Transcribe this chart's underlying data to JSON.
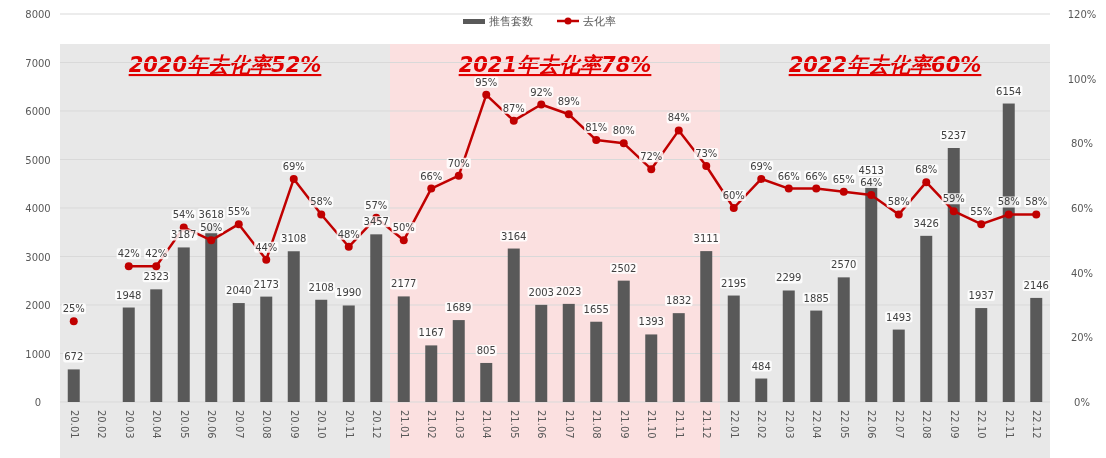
{
  "chart_data": {
    "type": "bar",
    "categories": [
      "20.01",
      "20.02",
      "20.03",
      "20.04",
      "20.05",
      "20.06",
      "20.07",
      "20.08",
      "20.09",
      "20.10",
      "20.11",
      "20.12",
      "21.01",
      "21.02",
      "21.03",
      "21.04",
      "21.05",
      "21.06",
      "21.07",
      "21.08",
      "21.09",
      "21.10",
      "21.11",
      "21.12",
      "22.01",
      "22.02",
      "22.03",
      "22.04",
      "22.05",
      "22.06",
      "22.07",
      "22.08",
      "22.09",
      "22.10",
      "22.11",
      "22.12"
    ],
    "series": [
      {
        "name": "推售套数",
        "color": "#595959",
        "values": [
          672,
          null,
          1948,
          2323,
          3187,
          3618,
          2040,
          2173,
          3108,
          2108,
          1990,
          3457,
          2177,
          1167,
          1689,
          805,
          3164,
          2003,
          2023,
          1655,
          2502,
          1393,
          1832,
          3111,
          2195,
          484,
          2299,
          1885,
          2570,
          4513,
          1493,
          3426,
          5237,
          1937,
          6154,
          2146
        ],
        "value_labels": [
          "672",
          null,
          "1948",
          "2323",
          "3187",
          "3618",
          "2040",
          "2173",
          "3108",
          "2108",
          "1990",
          "3457",
          "2177",
          "1167",
          "1689",
          "805",
          "3164",
          "2003",
          "2023",
          "1655",
          "2502",
          "1393",
          "1832",
          "3111",
          "2195",
          "484",
          "2299",
          "1885",
          "2570",
          "4513",
          "1493",
          "3426",
          "5237",
          "1937",
          "6154",
          "2146"
        ]
      },
      {
        "name": "去化率",
        "type": "line",
        "axis": "y2",
        "color": "#c00000",
        "marker": "circle",
        "values": [
          25,
          null,
          42,
          42,
          54,
          50,
          55,
          44,
          69,
          58,
          48,
          57,
          50,
          66,
          70,
          95,
          87,
          92,
          89,
          81,
          80,
          72,
          84,
          73,
          60,
          69,
          66,
          66,
          65,
          64,
          58,
          68,
          59,
          55,
          58,
          58
        ],
        "value_labels": [
          "25%",
          null,
          "42%",
          "42%",
          "54%",
          "50%",
          "55%",
          "44%",
          "69%",
          "58%",
          "48%",
          "57%",
          "50%",
          "66%",
          "70%",
          "95%",
          "87%",
          "92%",
          "89%",
          "81%",
          "80%",
          "72%",
          "84%",
          "73%",
          "60%",
          "69%",
          "66%",
          "66%",
          "65%",
          "64%",
          "58%",
          "68%",
          "59%",
          "55%",
          "58%",
          "58%"
        ]
      }
    ],
    "ylim": [
      0,
      8000
    ],
    "yticks": [
      0,
      1000,
      2000,
      3000,
      4000,
      5000,
      6000,
      7000,
      8000
    ],
    "y2lim": [
      0,
      120
    ],
    "y2ticks": [
      {
        "value": 0,
        "label": "0%"
      },
      {
        "value": 20,
        "label": "20%"
      },
      {
        "value": 40,
        "label": "40%"
      },
      {
        "value": 60,
        "label": "60%"
      },
      {
        "value": 80,
        "label": "80%"
      },
      {
        "value": 100,
        "label": "100%"
      },
      {
        "value": 120,
        "label": "120%"
      }
    ],
    "grid": "y",
    "legend": "top",
    "bands": [
      {
        "axis": "x",
        "from": "20.01",
        "to": "20.12",
        "label": "2020年去化率52%",
        "color": "#e8e8e8"
      },
      {
        "axis": "x",
        "from": "21.01",
        "to": "21.12",
        "label": "2021年去化率78%",
        "color": "#fbe0e0"
      },
      {
        "axis": "x",
        "from": "22.01",
        "to": "22.12",
        "label": "2022年去化率60%",
        "color": "#e8e8e8"
      }
    ]
  }
}
